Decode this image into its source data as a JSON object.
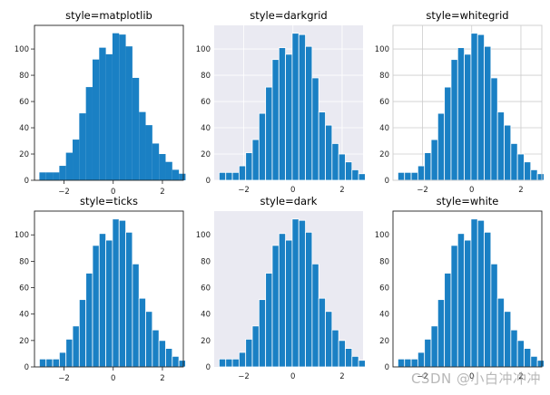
{
  "chart_data": [
    {
      "type": "bar",
      "style": "matplotlib",
      "title": "style=matplotlib",
      "bins": [
        -3.0,
        -2.73,
        -2.46,
        -2.19,
        -1.92,
        -1.65,
        -1.38,
        -1.11,
        -0.84,
        -0.57,
        -0.3,
        -0.03,
        0.24,
        0.51,
        0.78,
        1.05,
        1.32,
        1.59,
        1.86,
        2.13,
        2.4,
        2.67
      ],
      "values": [
        6,
        6,
        6,
        11,
        21,
        31,
        51,
        71,
        92,
        101,
        96,
        112,
        111,
        102,
        78,
        52,
        42,
        28,
        20,
        14,
        8,
        5
      ],
      "xticks": [
        "−2",
        "0",
        "2"
      ],
      "yticks": [
        "0",
        "20",
        "40",
        "60",
        "80",
        "100"
      ],
      "xlim": [
        -3.2,
        2.85
      ],
      "ylim": [
        0,
        118
      ]
    },
    {
      "type": "bar",
      "style": "darkgrid",
      "title": "style=darkgrid",
      "bins": [
        -3.0,
        -2.73,
        -2.46,
        -2.19,
        -1.92,
        -1.65,
        -1.38,
        -1.11,
        -0.84,
        -0.57,
        -0.3,
        -0.03,
        0.24,
        0.51,
        0.78,
        1.05,
        1.32,
        1.59,
        1.86,
        2.13,
        2.4,
        2.67
      ],
      "values": [
        6,
        6,
        6,
        11,
        21,
        31,
        51,
        71,
        92,
        101,
        96,
        112,
        111,
        102,
        78,
        52,
        42,
        28,
        20,
        14,
        8,
        5
      ],
      "xticks": [
        "−2",
        "0",
        "2"
      ],
      "yticks": [
        "0",
        "20",
        "40",
        "60",
        "80",
        "100"
      ],
      "xlim": [
        -3.2,
        2.85
      ],
      "ylim": [
        0,
        118
      ]
    },
    {
      "type": "bar",
      "style": "whitegrid",
      "title": "style=whitegrid",
      "bins": [
        -3.0,
        -2.73,
        -2.46,
        -2.19,
        -1.92,
        -1.65,
        -1.38,
        -1.11,
        -0.84,
        -0.57,
        -0.3,
        -0.03,
        0.24,
        0.51,
        0.78,
        1.05,
        1.32,
        1.59,
        1.86,
        2.13,
        2.4,
        2.67
      ],
      "values": [
        6,
        6,
        6,
        11,
        21,
        31,
        51,
        71,
        92,
        101,
        96,
        112,
        111,
        102,
        78,
        52,
        42,
        28,
        20,
        14,
        8,
        5
      ],
      "xticks": [
        "−2",
        "0",
        "2"
      ],
      "yticks": [
        "0",
        "20",
        "40",
        "60",
        "80",
        "100"
      ],
      "xlim": [
        -3.2,
        2.85
      ],
      "ylim": [
        0,
        118
      ]
    },
    {
      "type": "bar",
      "style": "ticks",
      "title": "style=ticks",
      "bins": [
        -3.0,
        -2.73,
        -2.46,
        -2.19,
        -1.92,
        -1.65,
        -1.38,
        -1.11,
        -0.84,
        -0.57,
        -0.3,
        -0.03,
        0.24,
        0.51,
        0.78,
        1.05,
        1.32,
        1.59,
        1.86,
        2.13,
        2.4,
        2.67
      ],
      "values": [
        6,
        6,
        6,
        11,
        21,
        31,
        51,
        71,
        92,
        101,
        96,
        112,
        111,
        102,
        78,
        52,
        42,
        28,
        20,
        14,
        8,
        5
      ],
      "xticks": [
        "−2",
        "0",
        "2"
      ],
      "yticks": [
        "0",
        "20",
        "40",
        "60",
        "80",
        "100"
      ],
      "xlim": [
        -3.2,
        2.85
      ],
      "ylim": [
        0,
        118
      ]
    },
    {
      "type": "bar",
      "style": "dark",
      "title": "style=dark",
      "bins": [
        -3.0,
        -2.73,
        -2.46,
        -2.19,
        -1.92,
        -1.65,
        -1.38,
        -1.11,
        -0.84,
        -0.57,
        -0.3,
        -0.03,
        0.24,
        0.51,
        0.78,
        1.05,
        1.32,
        1.59,
        1.86,
        2.13,
        2.4,
        2.67
      ],
      "values": [
        6,
        6,
        6,
        11,
        21,
        31,
        51,
        71,
        92,
        101,
        96,
        112,
        111,
        102,
        78,
        52,
        42,
        28,
        20,
        14,
        8,
        5
      ],
      "xticks": [
        "−2",
        "0",
        "2"
      ],
      "yticks": [
        "0",
        "20",
        "40",
        "60",
        "80",
        "100"
      ],
      "xlim": [
        -3.2,
        2.85
      ],
      "ylim": [
        0,
        118
      ]
    },
    {
      "type": "bar",
      "style": "white",
      "title": "style=white",
      "bins": [
        -3.0,
        -2.73,
        -2.46,
        -2.19,
        -1.92,
        -1.65,
        -1.38,
        -1.11,
        -0.84,
        -0.57,
        -0.3,
        -0.03,
        0.24,
        0.51,
        0.78,
        1.05,
        1.32,
        1.59,
        1.86,
        2.13,
        2.4,
        2.67
      ],
      "values": [
        6,
        6,
        6,
        11,
        21,
        31,
        51,
        71,
        92,
        101,
        96,
        112,
        111,
        102,
        78,
        52,
        42,
        28,
        20,
        14,
        8,
        5
      ],
      "xticks": [
        "−2",
        "0",
        "2"
      ],
      "yticks": [
        "0",
        "20",
        "40",
        "60",
        "80",
        "100"
      ],
      "xlim": [
        -3.2,
        2.85
      ],
      "ylim": [
        0,
        118
      ]
    }
  ],
  "colors": {
    "bar": "#1a80c4",
    "dark_bg": "#eaeaf2",
    "grid_light": "#ffffff",
    "grid_white": "#cccccc",
    "spine": "#222222"
  },
  "watermark": "CSDN @小白冲冲冲"
}
